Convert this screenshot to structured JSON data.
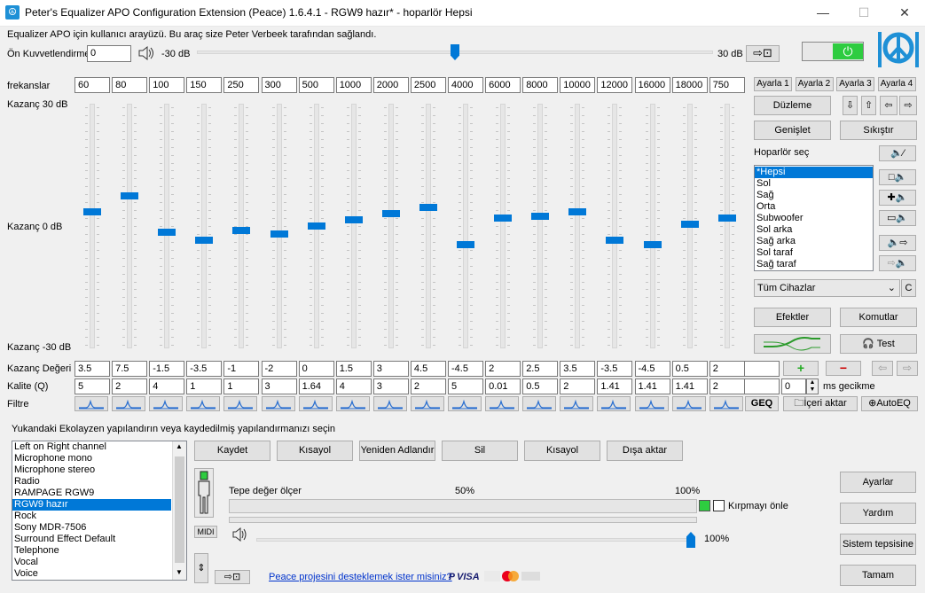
{
  "title": "Peter's Equalizer APO Configuration Extension (Peace) 1.6.4.1 - RGW9 hazır* - hoparlör Hepsi",
  "window": {
    "minimize": "—",
    "maximize": "☐",
    "close": "✕"
  },
  "description": "Equalizer APO için kullanıcı arayüzü. Bu araç size Peter Verbeek tarafından sağlandı.",
  "preamp": {
    "label": "Ön Kuvvetlendirme",
    "value": "0",
    "min_label": "-30 dB",
    "max_label": "30 dB",
    "level_fraction": 0.5
  },
  "bands_label": "frekanslar",
  "gain_top": "Kazanç 30 dB",
  "gain_mid": "Kazanç 0 dB",
  "gain_bottom": "Kazanç -30 dB",
  "gain_value_label": "Kazanç Değeri",
  "quality_label": "Kalite (Q)",
  "filter_label": "Filtre",
  "frequencies": [
    "60",
    "80",
    "100",
    "150",
    "250",
    "300",
    "500",
    "1000",
    "2000",
    "2500",
    "4000",
    "6000",
    "8000",
    "10000",
    "12000",
    "16000",
    "18000",
    "750"
  ],
  "gains": [
    "3.5",
    "7.5",
    "-1.5",
    "-3.5",
    "-1",
    "-2",
    "0",
    "1.5",
    "3",
    "4.5",
    "-4.5",
    "2",
    "2.5",
    "3.5",
    "-3.5",
    "-4.5",
    "0.5",
    "2"
  ],
  "gain_numbers": [
    3.5,
    7.5,
    -1.5,
    -3.5,
    -1,
    -2,
    0,
    1.5,
    3,
    4.5,
    -4.5,
    2,
    2.5,
    3.5,
    -3.5,
    -4.5,
    0.5,
    2
  ],
  "qualities": [
    "5",
    "2",
    "4",
    "1",
    "1",
    "3",
    "1.64",
    "4",
    "3",
    "2",
    "5",
    "0.01",
    "0.5",
    "2",
    "1.41",
    "1.41",
    "1.41",
    "2"
  ],
  "presets": [
    "Ayarla 1",
    "Ayarla 2",
    "Ayarla 3",
    "Ayarla 4"
  ],
  "buttons": {
    "edit": "Düzleme",
    "expand": "Genişlet",
    "compress": "Sıkıştır",
    "effects": "Efektler",
    "commands": "Komutlar",
    "test": "Test",
    "geq": "GEQ",
    "import": "İçeri aktar",
    "autoeq": "AutoEQ",
    "plus": "+",
    "minus": "−"
  },
  "speaker_label": "Hoparlör seç",
  "speakers": [
    "*Hepsi",
    "Sol",
    "Sağ",
    "Orta",
    "Subwoofer",
    "Sol arka",
    "Sağ arka",
    "Sol taraf",
    "Sağ taraf"
  ],
  "speaker_selected": 0,
  "devices": {
    "value": "Tüm Cihazlar",
    "c": "C"
  },
  "delay": {
    "value": "0",
    "label": "ms gecikme"
  },
  "config_hint": "Yukandaki Ekolayzen  yapılandırın veya kaydedilmiş yapılandırmanızı seçin",
  "configs": [
    "Left on Right channel",
    "Microphone mono",
    "Microphone stereo",
    "Radio",
    "RAMPAGE RGW9",
    "RGW9 hazır",
    "Rock",
    "Sony MDR-7506",
    "Surround Effect Default",
    "Telephone",
    "Vocal",
    "Voice"
  ],
  "config_selected": 5,
  "actions": [
    "Kaydet",
    "Kısayol",
    "Yeniden Adlandır",
    "Sil",
    "Kısayol",
    "Dışa aktar"
  ],
  "meter": {
    "label": "Tepe değer ölçer",
    "mid": "50%",
    "max": "100%",
    "clip": "Kırpmayı önle"
  },
  "midi": "MIDI",
  "volume": {
    "value": "100%",
    "level_fraction": 1.0
  },
  "right_buttons": [
    "Ayarlar",
    "Yardım",
    "Sistem tepsisine",
    "Tamam"
  ],
  "support_link": "Peace projesini desteklemek ister misiniz?",
  "colors": {
    "accent": "#0078d7",
    "power": "#2ecc40",
    "link": "#0033cc"
  }
}
